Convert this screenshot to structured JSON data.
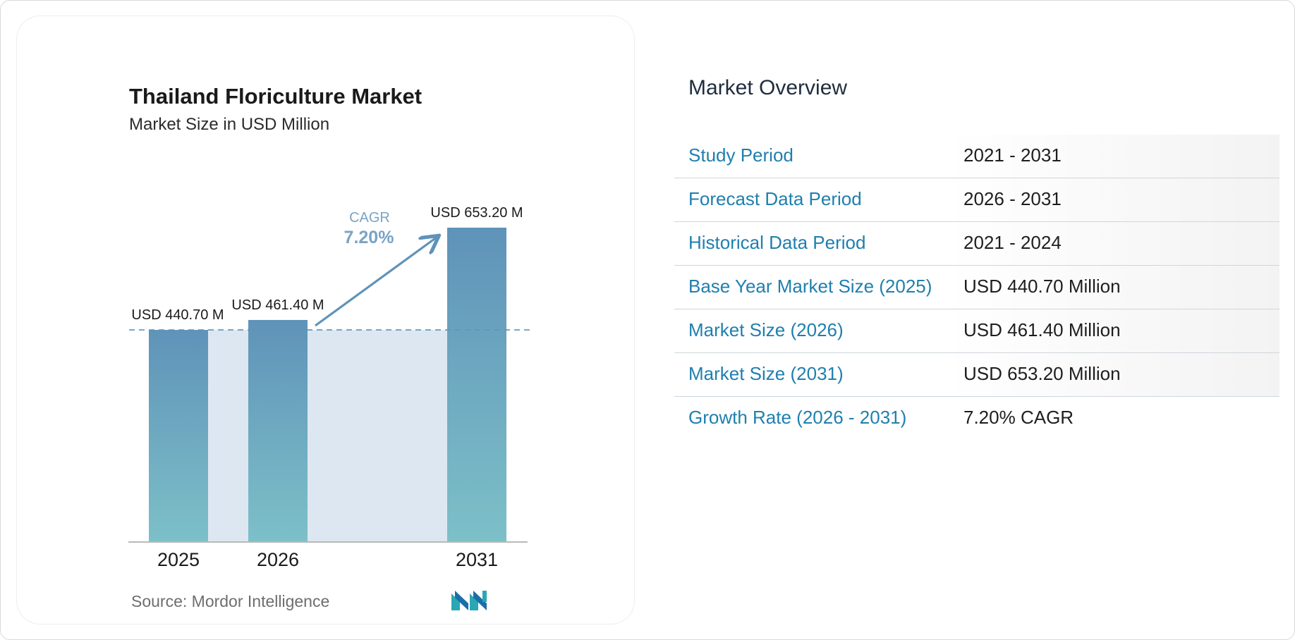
{
  "chart_data": {
    "type": "bar",
    "title": "Thailand Floriculture Market",
    "subtitle": "Market Size in USD Million",
    "categories": [
      "2025",
      "2026",
      "2031"
    ],
    "values": [
      440.7,
      461.4,
      653.2
    ],
    "data_labels": [
      "USD 440.70 M",
      "USD 461.40 M",
      "USD 653.20 M"
    ],
    "ylim": [
      0,
      653.2
    ],
    "cagr_label": "CAGR",
    "cagr_value": "7.20%",
    "source": "Source: Mordor Intelligence",
    "colors": {
      "bar_top": "#5f93b9",
      "bar_bottom": "#7dc0c8",
      "area": "#dde7f1",
      "arrow": "#5f93b9",
      "cagr_text": "#7aa3c3"
    }
  },
  "overview": {
    "title": "Market Overview",
    "rows": [
      {
        "label": "Study Period",
        "value": "2021 - 2031"
      },
      {
        "label": "Forecast Data Period",
        "value": "2026 - 2031"
      },
      {
        "label": "Historical Data Period",
        "value": "2021 - 2024"
      },
      {
        "label": "Base Year Market Size (2025)",
        "value": "USD 440.70 Million"
      },
      {
        "label": "Market Size (2026)",
        "value": "USD 461.40 Million"
      },
      {
        "label": "Market Size (2031)",
        "value": "USD 653.20 Million"
      },
      {
        "label": "Growth Rate (2026 - 2031)",
        "value": "7.20% CAGR"
      }
    ]
  },
  "colors": {
    "label_blue": "#1f7fae",
    "logo_teal": "#2aa7b5",
    "logo_blue": "#1b6fa8"
  }
}
